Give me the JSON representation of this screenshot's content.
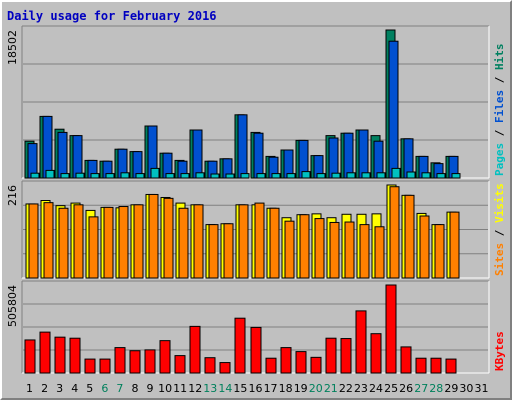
{
  "chart_data": {
    "type": "bar",
    "title": "Daily usage for February 2016",
    "title_color": "#0000c0",
    "categories": [
      "1",
      "2",
      "3",
      "4",
      "5",
      "6",
      "7",
      "8",
      "9",
      "10",
      "11",
      "12",
      "13",
      "14",
      "15",
      "16",
      "17",
      "18",
      "19",
      "20",
      "21",
      "22",
      "23",
      "24",
      "25",
      "26",
      "27",
      "28",
      "29",
      "30",
      "31"
    ],
    "weekend_days": [
      "6",
      "7",
      "13",
      "14",
      "20",
      "21",
      "27",
      "28"
    ],
    "weekend_label_color": "#00805c",
    "weekday_label_color": "#000000",
    "panels": [
      {
        "id": "hits-files-pages",
        "max_label": "18502",
        "max": 18502,
        "legend": [
          {
            "text": "Pages",
            "color": "#00c0c0"
          },
          {
            "text": " / ",
            "color": "#000000"
          },
          {
            "text": "Files",
            "color": "#0050d0"
          },
          {
            "text": " / ",
            "color": "#000000"
          },
          {
            "text": "Hits",
            "color": "#008060"
          }
        ],
        "series": [
          {
            "name": "Hits",
            "color": "#008060",
            "values": [
              4600,
              7700,
              6100,
              5300,
              2200,
              2100,
              3600,
              3300,
              6500,
              3100,
              2200,
              6000,
              2100,
              2400,
              7900,
              5700,
              2700,
              3500,
              4700,
              2800,
              5300,
              5600,
              6000,
              5300,
              18502,
              4900,
              2700,
              1900,
              2700,
              null,
              null
            ]
          },
          {
            "name": "Files",
            "color": "#0050d0",
            "values": [
              4300,
              7700,
              5700,
              5300,
              2200,
              2100,
              3600,
              3300,
              6500,
              3100,
              2100,
              6000,
              2100,
              2400,
              7900,
              5600,
              2600,
              3500,
              4700,
              2800,
              5000,
              5600,
              6000,
              4600,
              17100,
              4900,
              2700,
              1800,
              2700,
              null,
              null
            ]
          },
          {
            "name": "Pages",
            "color": "#00c0c0",
            "values": [
              600,
              950,
              550,
              600,
              550,
              550,
              650,
              550,
              1200,
              550,
              550,
              650,
              500,
              500,
              550,
              550,
              550,
              550,
              800,
              550,
              600,
              650,
              650,
              650,
              1200,
              750,
              650,
              550,
              550,
              null,
              null
            ]
          }
        ]
      },
      {
        "id": "visits-sites",
        "max_label": "216",
        "max": 216,
        "legend": [
          {
            "text": "Sites",
            "color": "#ff8000"
          },
          {
            "text": " / ",
            "color": "#000000"
          },
          {
            "text": "Visits",
            "color": "#ffff00"
          }
        ],
        "series": [
          {
            "name": "Visits",
            "color": "#ffff00",
            "values": [
              172,
              180,
              168,
              174,
              157,
              164,
              163,
              170,
              194,
              187,
              174,
              170,
              124,
              126,
              170,
              170,
              162,
              140,
              147,
              149,
              140,
              148,
              148,
              149,
              216,
              192,
              150,
              124,
              153,
              null,
              null
            ]
          },
          {
            "name": "Sites",
            "color": "#ff8000",
            "values": [
              172,
              175,
              162,
              170,
              142,
              164,
              166,
              170,
              194,
              185,
              162,
              170,
              124,
              126,
              170,
              174,
              162,
              132,
              147,
              138,
              129,
              130,
              124,
              119,
              212,
              192,
              144,
              124,
              153,
              null,
              null
            ]
          }
        ]
      },
      {
        "id": "kbytes",
        "max_label": "505804",
        "max": 505804,
        "legend": [
          {
            "text": "KBytes",
            "color": "#ff0000"
          }
        ],
        "series": [
          {
            "name": "KBytes",
            "color": "#ff0000",
            "values": [
              190000,
              235000,
              206000,
              200000,
              80000,
              80000,
              146000,
              128000,
              133000,
              186000,
              100000,
              268000,
              88000,
              60000,
              315000,
              262000,
              85000,
              146000,
              123000,
              90000,
              200000,
              198000,
              357000,
              226000,
              505804,
              150000,
              85000,
              85000,
              80000,
              null,
              null
            ]
          }
        ]
      }
    ]
  }
}
